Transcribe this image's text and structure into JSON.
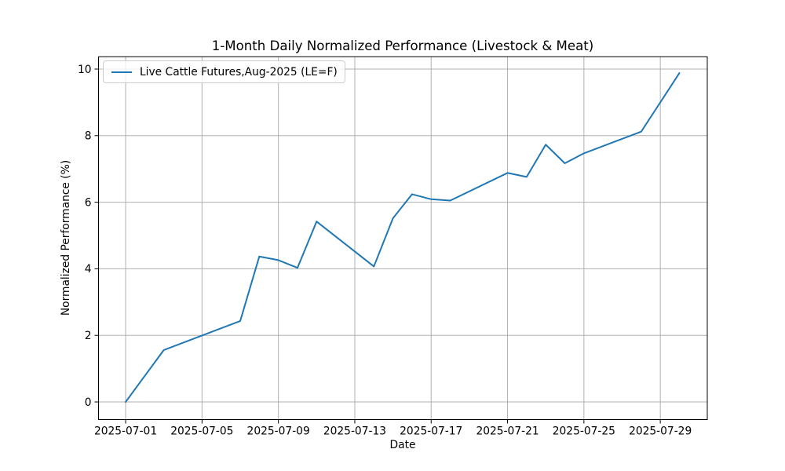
{
  "chart_data": {
    "type": "line",
    "title": "1-Month Daily Normalized Performance (Livestock & Meat)",
    "xlabel": "Date",
    "ylabel": "Normalized Performance (%)",
    "grid": true,
    "legend_position": "upper left",
    "line_color": "#1f77b4",
    "grid_color": "#b0b0b0",
    "axis_color": "#000000",
    "background_color": "#ffffff",
    "ylim": [
      -0.53,
      10.37
    ],
    "xlim_days_from_first_point": [
      -1.42,
      30.46
    ],
    "yticks": [
      0,
      2,
      4,
      6,
      8,
      10
    ],
    "xticks": [
      "2025-07-01",
      "2025-07-05",
      "2025-07-09",
      "2025-07-13",
      "2025-07-17",
      "2025-07-21",
      "2025-07-25",
      "2025-07-29"
    ],
    "series": [
      {
        "name": "Live Cattle Futures,Aug-2025 (LE=F)",
        "x": [
          "2025-07-01",
          "2025-07-02",
          "2025-07-03",
          "2025-07-07",
          "2025-07-08",
          "2025-07-09",
          "2025-07-10",
          "2025-07-11",
          "2025-07-14",
          "2025-07-15",
          "2025-07-16",
          "2025-07-17",
          "2025-07-18",
          "2025-07-21",
          "2025-07-22",
          "2025-07-23",
          "2025-07-24",
          "2025-07-25",
          "2025-07-28",
          "2025-07-29",
          "2025-07-30"
        ],
        "values": [
          0.0,
          0.78,
          1.56,
          2.43,
          4.37,
          4.26,
          4.03,
          5.42,
          4.07,
          5.52,
          6.24,
          6.09,
          6.05,
          6.88,
          6.76,
          7.73,
          7.17,
          7.47,
          8.12,
          9.0,
          9.88
        ]
      }
    ]
  }
}
